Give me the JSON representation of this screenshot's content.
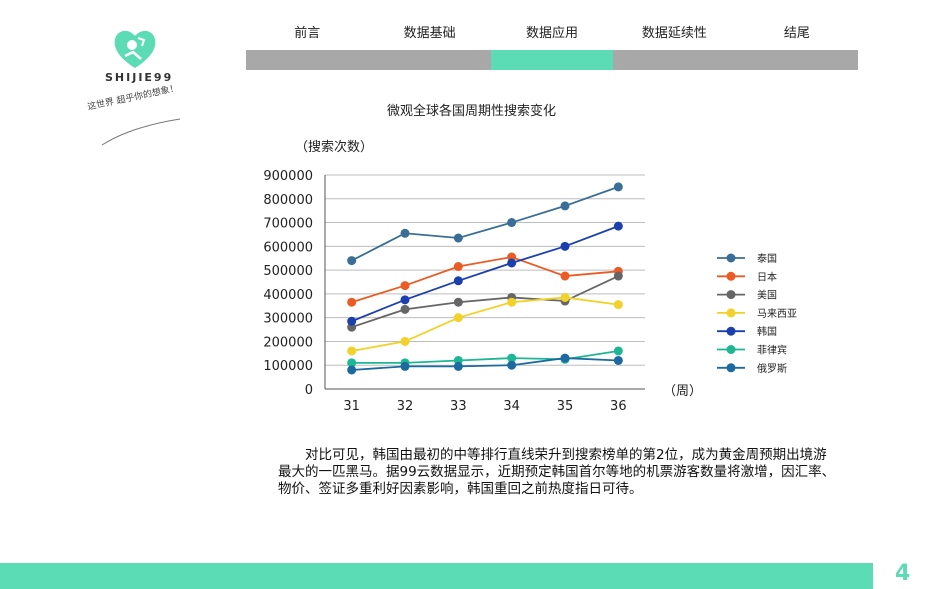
{
  "brand": {
    "name": "SHIJIE99",
    "slogan": "这世界 超乎你的想象！"
  },
  "nav": {
    "tabs": [
      {
        "label": "前言",
        "active": false
      },
      {
        "label": "数据基础",
        "active": false
      },
      {
        "label": "数据应用",
        "active": true
      },
      {
        "label": "数据延续性",
        "active": false
      },
      {
        "label": "结尾",
        "active": false
      }
    ]
  },
  "colors": {
    "accent": "#5cdcb4",
    "nav_inactive": "#a8a8a8"
  },
  "chart_data": {
    "type": "line",
    "title": "微观全球各国周期性搜索变化",
    "ylabel": "（搜索次数）",
    "xlabel": "（周）",
    "x": [
      31,
      32,
      33,
      34,
      35,
      36
    ],
    "ylim": [
      0,
      900000
    ],
    "yticks": [
      "0",
      "100000",
      "200000",
      "300000",
      "400000",
      "500000",
      "600000",
      "700000",
      "800000",
      "900000"
    ],
    "grid": true,
    "legend_position": "right",
    "series": [
      {
        "name": "泰国",
        "color": "#3a6e96",
        "values": [
          540000,
          655000,
          635000,
          700000,
          770000,
          850000
        ]
      },
      {
        "name": "日本",
        "color": "#ec5b24",
        "values": [
          365000,
          435000,
          515000,
          555000,
          475000,
          495000
        ]
      },
      {
        "name": "美国",
        "color": "#666666",
        "values": [
          260000,
          335000,
          365000,
          385000,
          370000,
          475000
        ]
      },
      {
        "name": "马来西亚",
        "color": "#f2d128",
        "values": [
          160000,
          200000,
          300000,
          365000,
          385000,
          355000
        ]
      },
      {
        "name": "韩国",
        "color": "#1c3fb0",
        "values": [
          285000,
          375000,
          455000,
          530000,
          600000,
          685000
        ]
      },
      {
        "name": "菲律宾",
        "color": "#1db794",
        "values": [
          110000,
          110000,
          120000,
          130000,
          125000,
          160000
        ]
      },
      {
        "name": "俄罗斯",
        "color": "#1c6aa0",
        "values": [
          80000,
          95000,
          95000,
          100000,
          130000,
          120000
        ]
      }
    ]
  },
  "paragraph": "对比可见，韩国由最初的中等排行直线荣升到搜索榜单的第2位，成为黄金周预期出境游最大的一匹黑马。据99云数据显示，近期预定韩国首尔等地的机票游客数量将激增，因汇率、物价、签证多重利好因素影响，韩国重回之前热度指日可待。",
  "page_number": "4"
}
